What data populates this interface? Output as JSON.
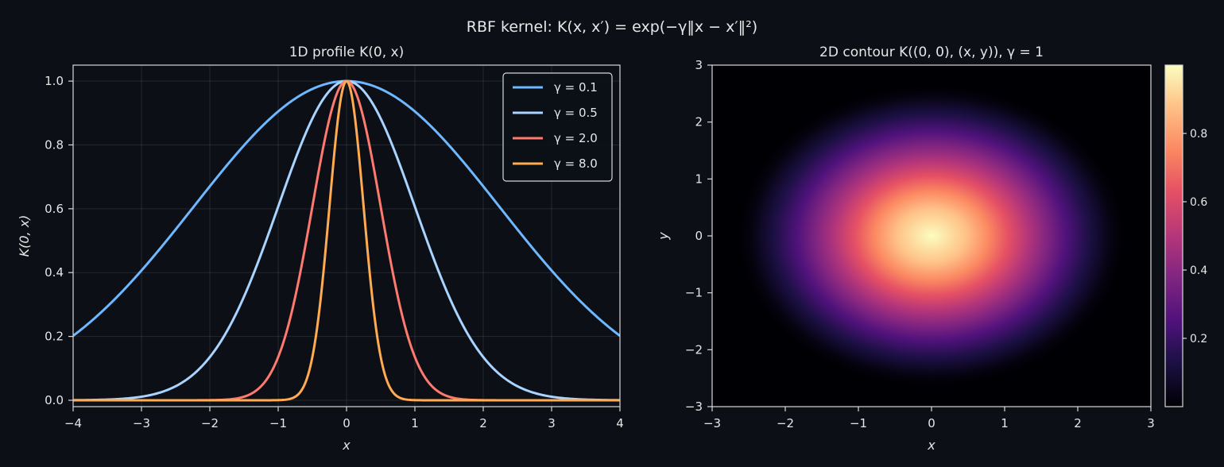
{
  "suptitle": "RBF kernel: K(x, x′) = exp(−γ‖x − x′‖²)",
  "chart_data": [
    {
      "type": "line",
      "title": "1D profile K(0, x)",
      "xlabel": "x",
      "ylabel": "K(0, x)",
      "xlim": [
        -4,
        4
      ],
      "ylim": [
        -0.02,
        1.05
      ],
      "xticks": [
        -4,
        -3,
        -2,
        -1,
        0,
        1,
        2,
        3,
        4
      ],
      "yticks": [
        0.0,
        0.2,
        0.4,
        0.6,
        0.8,
        1.0
      ],
      "xtick_labels": [
        "−4",
        "−3",
        "−2",
        "−1",
        "0",
        "1",
        "2",
        "3",
        "4"
      ],
      "ytick_labels": [
        "0.0",
        "0.2",
        "0.4",
        "0.6",
        "0.8",
        "1.0"
      ],
      "grid": true,
      "legend_position": "upper-right",
      "function": "exp(-gamma * x^2)",
      "series": [
        {
          "name": "γ = 0.1",
          "gamma": 0.1,
          "color": "#6db8ff"
        },
        {
          "name": "γ = 0.5",
          "gamma": 0.5,
          "color": "#a8d4ff"
        },
        {
          "name": "γ = 2.0",
          "gamma": 2.0,
          "color": "#ff7a6e"
        },
        {
          "name": "γ = 8.0",
          "gamma": 8.0,
          "color": "#ffab52"
        }
      ]
    },
    {
      "type": "heatmap",
      "title": "2D contour K((0, 0), (x, y)), γ = 1",
      "xlabel": "x",
      "ylabel": "y",
      "xlim": [
        -3,
        3
      ],
      "ylim": [
        -3,
        3
      ],
      "xticks": [
        -3,
        -2,
        -1,
        0,
        1,
        2,
        3
      ],
      "yticks": [
        -3,
        -2,
        -1,
        0,
        1,
        2,
        3
      ],
      "xtick_labels": [
        "−3",
        "−2",
        "−1",
        "0",
        "1",
        "2",
        "3"
      ],
      "ytick_labels": [
        "−3",
        "−2",
        "−1",
        "0",
        "1",
        "2",
        "3"
      ],
      "gamma": 1,
      "function": "exp(-gamma * (x^2 + y^2))",
      "colormap": "magma",
      "colorbar_ticks": [
        0.2,
        0.4,
        0.6,
        0.8
      ],
      "colorbar_tick_labels": [
        "0.2",
        "0.4",
        "0.6",
        "0.8"
      ],
      "colorbar_range": [
        0,
        1
      ]
    }
  ]
}
